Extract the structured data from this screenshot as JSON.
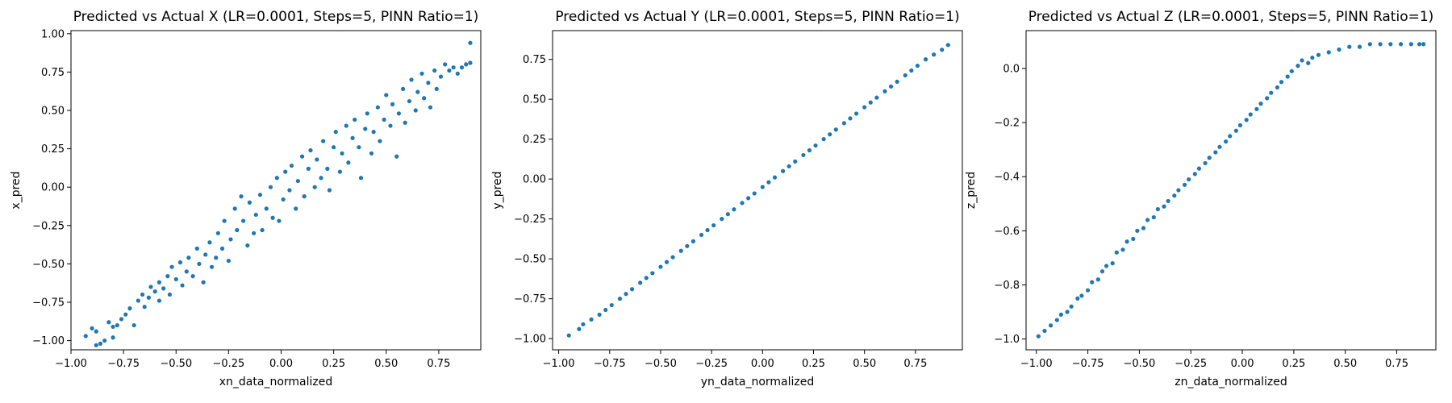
{
  "chart_data": [
    {
      "type": "scatter",
      "title": "Predicted vs Actual X (LR=0.0001, Steps=5, PINN Ratio=1)",
      "xlabel": "xn_data_normalized",
      "ylabel": "x_pred",
      "xlim": [
        -1.0,
        0.95
      ],
      "ylim": [
        -1.06,
        1.02
      ],
      "xticks": [
        -1.0,
        -0.75,
        -0.5,
        -0.25,
        0.0,
        0.25,
        0.5,
        0.75
      ],
      "xtick_labels": [
        "−1.00",
        "−0.75",
        "−0.50",
        "−0.25",
        "0.00",
        "0.25",
        "0.50",
        "0.75"
      ],
      "yticks": [
        -1.0,
        -0.75,
        -0.5,
        -0.25,
        0.0,
        0.25,
        0.5,
        0.75,
        1.0
      ],
      "ytick_labels": [
        "−1.00",
        "−0.75",
        "−0.50",
        "−0.25",
        "0.00",
        "0.25",
        "0.50",
        "0.75",
        "1.00"
      ],
      "color": "#1f77b4",
      "points": [
        [
          -0.93,
          -0.97
        ],
        [
          -0.9,
          -0.92
        ],
        [
          -0.88,
          -0.94
        ],
        [
          -0.88,
          -1.03
        ],
        [
          -0.86,
          -1.02
        ],
        [
          -0.84,
          -1.0
        ],
        [
          -0.82,
          -0.88
        ],
        [
          -0.8,
          -0.91
        ],
        [
          -0.8,
          -0.98
        ],
        [
          -0.78,
          -0.9
        ],
        [
          -0.76,
          -0.86
        ],
        [
          -0.74,
          -0.83
        ],
        [
          -0.72,
          -0.79
        ],
        [
          -0.7,
          -0.9
        ],
        [
          -0.68,
          -0.74
        ],
        [
          -0.66,
          -0.7
        ],
        [
          -0.65,
          -0.78
        ],
        [
          -0.63,
          -0.72
        ],
        [
          -0.62,
          -0.65
        ],
        [
          -0.6,
          -0.68
        ],
        [
          -0.58,
          -0.62
        ],
        [
          -0.58,
          -0.74
        ],
        [
          -0.56,
          -0.66
        ],
        [
          -0.54,
          -0.58
        ],
        [
          -0.53,
          -0.7
        ],
        [
          -0.52,
          -0.52
        ],
        [
          -0.5,
          -0.6
        ],
        [
          -0.48,
          -0.49
        ],
        [
          -0.47,
          -0.64
        ],
        [
          -0.45,
          -0.55
        ],
        [
          -0.44,
          -0.46
        ],
        [
          -0.42,
          -0.58
        ],
        [
          -0.4,
          -0.4
        ],
        [
          -0.39,
          -0.5
        ],
        [
          -0.37,
          -0.62
        ],
        [
          -0.36,
          -0.44
        ],
        [
          -0.34,
          -0.36
        ],
        [
          -0.33,
          -0.52
        ],
        [
          -0.31,
          -0.46
        ],
        [
          -0.3,
          -0.3
        ],
        [
          -0.28,
          -0.4
        ],
        [
          -0.27,
          -0.22
        ],
        [
          -0.25,
          -0.48
        ],
        [
          -0.24,
          -0.34
        ],
        [
          -0.22,
          -0.14
        ],
        [
          -0.21,
          -0.28
        ],
        [
          -0.19,
          -0.06
        ],
        [
          -0.18,
          -0.22
        ],
        [
          -0.16,
          -0.38
        ],
        [
          -0.15,
          -0.1
        ],
        [
          -0.13,
          -0.3
        ],
        [
          -0.12,
          -0.18
        ],
        [
          -0.1,
          -0.05
        ],
        [
          -0.09,
          -0.28
        ],
        [
          -0.07,
          -0.14
        ],
        [
          -0.05,
          0.0
        ],
        [
          -0.04,
          -0.2
        ],
        [
          -0.02,
          0.06
        ],
        [
          -0.01,
          -0.22
        ],
        [
          0.01,
          -0.08
        ],
        [
          0.02,
          0.1
        ],
        [
          0.04,
          -0.02
        ],
        [
          0.05,
          0.14
        ],
        [
          0.07,
          -0.14
        ],
        [
          0.08,
          0.04
        ],
        [
          0.1,
          0.2
        ],
        [
          0.11,
          -0.06
        ],
        [
          0.13,
          0.12
        ],
        [
          0.14,
          0.24
        ],
        [
          0.16,
          0.0
        ],
        [
          0.17,
          0.18
        ],
        [
          0.19,
          0.06
        ],
        [
          0.2,
          0.3
        ],
        [
          0.22,
          0.12
        ],
        [
          0.23,
          -0.02
        ],
        [
          0.25,
          0.26
        ],
        [
          0.26,
          0.36
        ],
        [
          0.28,
          0.1
        ],
        [
          0.29,
          0.22
        ],
        [
          0.31,
          0.4
        ],
        [
          0.32,
          0.16
        ],
        [
          0.34,
          0.32
        ],
        [
          0.35,
          0.44
        ],
        [
          0.37,
          0.26
        ],
        [
          0.38,
          0.06
        ],
        [
          0.4,
          0.38
        ],
        [
          0.41,
          0.48
        ],
        [
          0.43,
          0.22
        ],
        [
          0.44,
          0.36
        ],
        [
          0.46,
          0.52
        ],
        [
          0.47,
          0.3
        ],
        [
          0.49,
          0.44
        ],
        [
          0.5,
          0.6
        ],
        [
          0.52,
          0.4
        ],
        [
          0.53,
          0.54
        ],
        [
          0.55,
          0.2
        ],
        [
          0.56,
          0.48
        ],
        [
          0.58,
          0.64
        ],
        [
          0.59,
          0.42
        ],
        [
          0.61,
          0.56
        ],
        [
          0.62,
          0.7
        ],
        [
          0.64,
          0.5
        ],
        [
          0.65,
          0.62
        ],
        [
          0.67,
          0.74
        ],
        [
          0.68,
          0.58
        ],
        [
          0.7,
          0.68
        ],
        [
          0.71,
          0.52
        ],
        [
          0.73,
          0.76
        ],
        [
          0.74,
          0.64
        ],
        [
          0.76,
          0.72
        ],
        [
          0.78,
          0.8
        ],
        [
          0.8,
          0.76
        ],
        [
          0.82,
          0.78
        ],
        [
          0.84,
          0.74
        ],
        [
          0.86,
          0.78
        ],
        [
          0.88,
          0.8
        ],
        [
          0.9,
          0.94
        ],
        [
          0.9,
          0.81
        ]
      ]
    },
    {
      "type": "scatter",
      "title": "Predicted vs Actual Y (LR=0.0001, Steps=5, PINN Ratio=1)",
      "xlabel": "yn_data_normalized",
      "ylabel": "y_pred",
      "xlim": [
        -1.03,
        0.98
      ],
      "ylim": [
        -1.07,
        0.93
      ],
      "xticks": [
        -1.0,
        -0.75,
        -0.5,
        -0.25,
        0.0,
        0.25,
        0.5,
        0.75
      ],
      "xtick_labels": [
        "−1.00",
        "−0.75",
        "−0.50",
        "−0.25",
        "0.00",
        "0.25",
        "0.50",
        "0.75"
      ],
      "yticks": [
        -1.0,
        -0.75,
        -0.5,
        -0.25,
        0.0,
        0.25,
        0.5,
        0.75
      ],
      "ytick_labels": [
        "−1.00",
        "−0.75",
        "−0.50",
        "−0.25",
        "0.00",
        "0.25",
        "0.50",
        "0.75"
      ],
      "color": "#1f77b4",
      "points": [
        [
          -0.95,
          -0.98
        ],
        [
          -0.9,
          -0.94
        ],
        [
          -0.88,
          -0.91
        ],
        [
          -0.84,
          -0.88
        ],
        [
          -0.8,
          -0.85
        ],
        [
          -0.77,
          -0.82
        ],
        [
          -0.74,
          -0.79
        ],
        [
          -0.7,
          -0.75
        ],
        [
          -0.67,
          -0.72
        ],
        [
          -0.64,
          -0.69
        ],
        [
          -0.6,
          -0.65
        ],
        [
          -0.57,
          -0.62
        ],
        [
          -0.54,
          -0.59
        ],
        [
          -0.5,
          -0.55
        ],
        [
          -0.47,
          -0.52
        ],
        [
          -0.44,
          -0.49
        ],
        [
          -0.4,
          -0.45
        ],
        [
          -0.37,
          -0.42
        ],
        [
          -0.34,
          -0.39
        ],
        [
          -0.3,
          -0.35
        ],
        [
          -0.27,
          -0.32
        ],
        [
          -0.24,
          -0.29
        ],
        [
          -0.2,
          -0.25
        ],
        [
          -0.17,
          -0.22
        ],
        [
          -0.14,
          -0.19
        ],
        [
          -0.1,
          -0.15
        ],
        [
          -0.07,
          -0.12
        ],
        [
          -0.04,
          -0.09
        ],
        [
          0.0,
          -0.05
        ],
        [
          0.03,
          -0.02
        ],
        [
          0.06,
          0.01
        ],
        [
          0.1,
          0.05
        ],
        [
          0.13,
          0.08
        ],
        [
          0.16,
          0.11
        ],
        [
          0.2,
          0.15
        ],
        [
          0.23,
          0.18
        ],
        [
          0.26,
          0.21
        ],
        [
          0.3,
          0.25
        ],
        [
          0.33,
          0.28
        ],
        [
          0.36,
          0.31
        ],
        [
          0.4,
          0.35
        ],
        [
          0.43,
          0.38
        ],
        [
          0.46,
          0.41
        ],
        [
          0.5,
          0.45
        ],
        [
          0.53,
          0.48
        ],
        [
          0.56,
          0.51
        ],
        [
          0.6,
          0.55
        ],
        [
          0.63,
          0.58
        ],
        [
          0.66,
          0.61
        ],
        [
          0.7,
          0.65
        ],
        [
          0.73,
          0.68
        ],
        [
          0.76,
          0.71
        ],
        [
          0.8,
          0.75
        ],
        [
          0.84,
          0.78
        ],
        [
          0.88,
          0.81
        ],
        [
          0.91,
          0.84
        ]
      ]
    },
    {
      "type": "scatter",
      "title": "Predicted vs Actual Z (LR=0.0001, Steps=5, PINN Ratio=1)",
      "xlabel": "zn_data_normalized",
      "ylabel": "z_pred",
      "xlim": [
        -1.05,
        0.94
      ],
      "ylim": [
        -1.04,
        0.14
      ],
      "xticks": [
        -1.0,
        -0.75,
        -0.5,
        -0.25,
        0.0,
        0.25,
        0.5,
        0.75
      ],
      "xtick_labels": [
        "−1.00",
        "−0.75",
        "−0.50",
        "−0.25",
        "0.00",
        "0.25",
        "0.50",
        "0.75"
      ],
      "yticks": [
        -1.0,
        -0.8,
        -0.6,
        -0.4,
        -0.2,
        0.0
      ],
      "ytick_labels": [
        "−1.0",
        "−0.8",
        "−0.6",
        "−0.4",
        "−0.2",
        "0.0"
      ],
      "color": "#1f77b4",
      "points": [
        [
          -0.99,
          -0.99
        ],
        [
          -0.96,
          -0.97
        ],
        [
          -0.93,
          -0.95
        ],
        [
          -0.9,
          -0.93
        ],
        [
          -0.88,
          -0.91
        ],
        [
          -0.85,
          -0.9
        ],
        [
          -0.83,
          -0.88
        ],
        [
          -0.8,
          -0.85
        ],
        [
          -0.78,
          -0.84
        ],
        [
          -0.75,
          -0.82
        ],
        [
          -0.73,
          -0.79
        ],
        [
          -0.7,
          -0.78
        ],
        [
          -0.68,
          -0.75
        ],
        [
          -0.66,
          -0.73
        ],
        [
          -0.63,
          -0.72
        ],
        [
          -0.61,
          -0.68
        ],
        [
          -0.58,
          -0.67
        ],
        [
          -0.56,
          -0.64
        ],
        [
          -0.53,
          -0.63
        ],
        [
          -0.51,
          -0.6
        ],
        [
          -0.48,
          -0.59
        ],
        [
          -0.46,
          -0.56
        ],
        [
          -0.43,
          -0.55
        ],
        [
          -0.41,
          -0.52
        ],
        [
          -0.38,
          -0.51
        ],
        [
          -0.36,
          -0.49
        ],
        [
          -0.33,
          -0.47
        ],
        [
          -0.31,
          -0.45
        ],
        [
          -0.28,
          -0.43
        ],
        [
          -0.26,
          -0.41
        ],
        [
          -0.23,
          -0.39
        ],
        [
          -0.21,
          -0.37
        ],
        [
          -0.18,
          -0.35
        ],
        [
          -0.16,
          -0.33
        ],
        [
          -0.13,
          -0.31
        ],
        [
          -0.11,
          -0.29
        ],
        [
          -0.08,
          -0.27
        ],
        [
          -0.06,
          -0.25
        ],
        [
          -0.03,
          -0.23
        ],
        [
          -0.01,
          -0.21
        ],
        [
          0.02,
          -0.19
        ],
        [
          0.04,
          -0.17
        ],
        [
          0.07,
          -0.15
        ],
        [
          0.09,
          -0.13
        ],
        [
          0.12,
          -0.11
        ],
        [
          0.14,
          -0.09
        ],
        [
          0.17,
          -0.07
        ],
        [
          0.19,
          -0.05
        ],
        [
          0.22,
          -0.03
        ],
        [
          0.24,
          -0.01
        ],
        [
          0.27,
          0.01
        ],
        [
          0.29,
          0.03
        ],
        [
          0.32,
          0.02
        ],
        [
          0.34,
          0.04
        ],
        [
          0.37,
          0.05
        ],
        [
          0.42,
          0.06
        ],
        [
          0.47,
          0.07
        ],
        [
          0.52,
          0.08
        ],
        [
          0.57,
          0.08
        ],
        [
          0.62,
          0.09
        ],
        [
          0.67,
          0.09
        ],
        [
          0.72,
          0.09
        ],
        [
          0.77,
          0.09
        ],
        [
          0.82,
          0.09
        ],
        [
          0.86,
          0.09
        ],
        [
          0.88,
          0.09
        ]
      ]
    }
  ]
}
